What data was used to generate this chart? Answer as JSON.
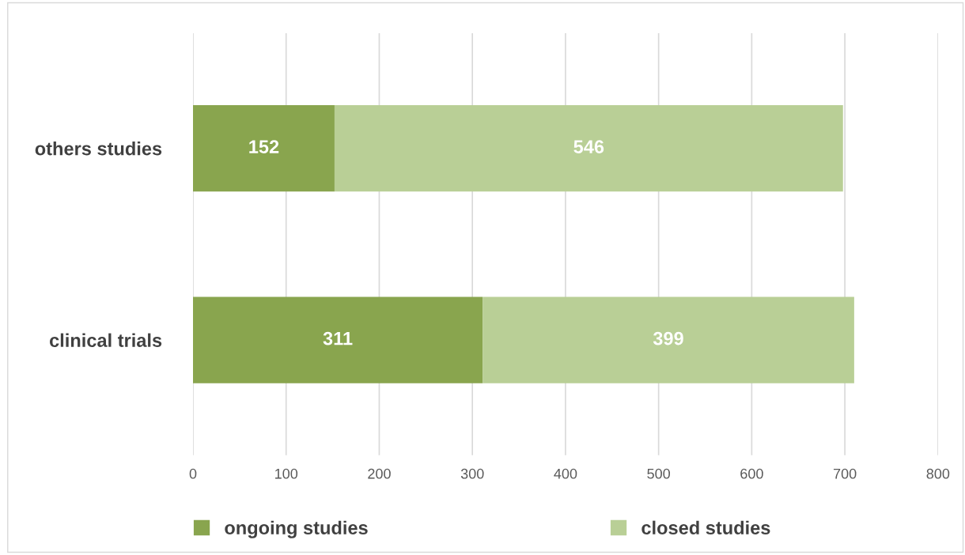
{
  "chart_data": {
    "type": "bar",
    "orientation": "horizontal",
    "stacked": true,
    "categories": [
      "others studies",
      "clinical trials"
    ],
    "series": [
      {
        "name": "ongoing studies",
        "color": "#89a54e",
        "values": [
          152,
          311
        ]
      },
      {
        "name": "closed studies",
        "color": "#b9cf96",
        "values": [
          546,
          399
        ]
      }
    ],
    "xlim": [
      0,
      800
    ],
    "xticks": [
      0,
      100,
      200,
      300,
      400,
      500,
      600,
      700,
      800
    ],
    "grid": "x",
    "legend": "bottom",
    "data_labels": true
  }
}
